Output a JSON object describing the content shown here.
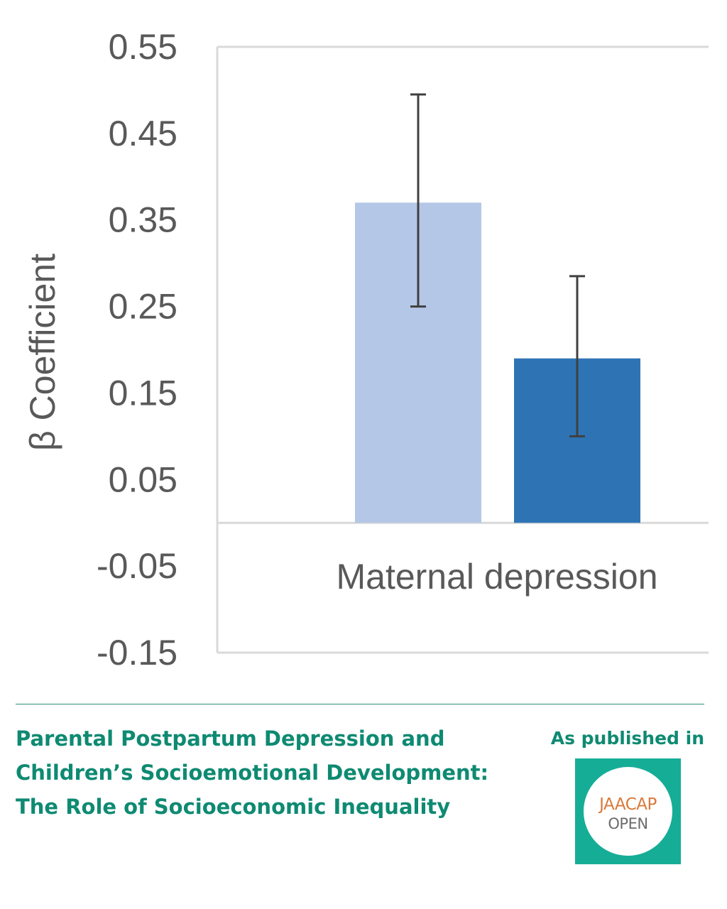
{
  "chart_data": {
    "type": "bar",
    "title": "",
    "xlabel": "",
    "ylabel": "β Coefficient",
    "ylim": [
      -0.15,
      0.55
    ],
    "y_ticks": [
      "0.55",
      "0.45",
      "0.35",
      "0.25",
      "0.15",
      "0.05",
      "-0.05",
      "-0.15"
    ],
    "y_tick_values": [
      0.55,
      0.45,
      0.35,
      0.25,
      0.15,
      0.05,
      -0.05,
      -0.15
    ],
    "categories": [
      "Maternal depression"
    ],
    "series": [
      {
        "values": [
          0.37
        ],
        "error_low": [
          0.25
        ],
        "error_high": [
          0.495
        ],
        "color": "#b4c7e7"
      },
      {
        "values": [
          0.19
        ],
        "error_low": [
          0.1
        ],
        "error_high": [
          0.285
        ],
        "color": "#2e74b5"
      }
    ],
    "grid": false,
    "legend": "none",
    "axis_color": "#d9d9d9",
    "error_bar_color": "#404040"
  },
  "footer": {
    "title_lines": [
      "Parental Postpartum Depression and",
      "Children’s Socioemotional Development:",
      "The Role of Socioeconomic Inequality"
    ],
    "published_label": "As published in",
    "logo": {
      "top_text": "JAACAP",
      "bottom_text": "OPEN",
      "bg_color": "#16ad97",
      "top_color": "#d9793a",
      "bottom_color": "#6b6b6b"
    }
  },
  "colors": {
    "accent": "#0e8a72",
    "divider": "#2e8b78",
    "text_gray": "#595959"
  }
}
